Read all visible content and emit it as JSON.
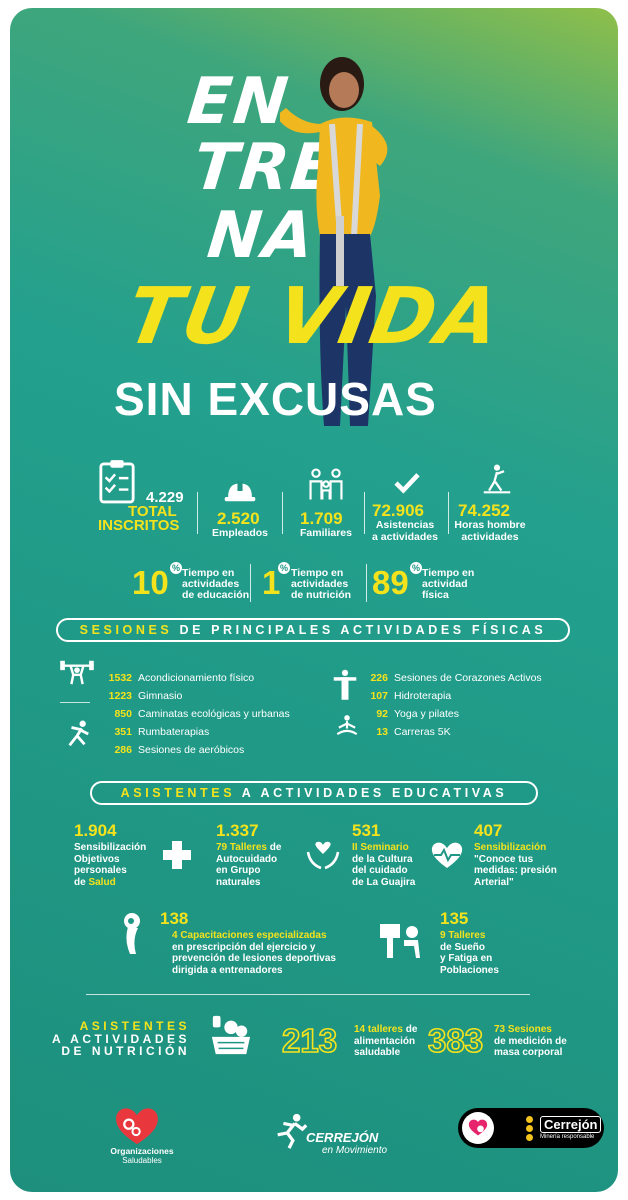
{
  "hero": {
    "line1": "EN",
    "line2": "TRE",
    "line3": "NA",
    "line4": "TU VIDA",
    "line5": "SIN EXCUSAS"
  },
  "stats": {
    "total": {
      "value": "4.229",
      "label1": "TOTAL",
      "label2": "INSCRITOS"
    },
    "empleados": {
      "value": "2.520",
      "label": "Empleados"
    },
    "familiares": {
      "value": "1.709",
      "label": "Familiares"
    },
    "asistencias": {
      "value": "72.906",
      "label1": "Asistencias",
      "label2": "a actividades"
    },
    "horas": {
      "value": "74.252",
      "label1": "Horas hombre",
      "label2": "actividades"
    }
  },
  "percentages": [
    {
      "value": "10",
      "sign": "%",
      "l1": "Tiempo en",
      "l2": "actividades",
      "l3": "de educación"
    },
    {
      "value": "1",
      "sign": "%",
      "l1": "Tiempo en",
      "l2": "actividades",
      "l3": "de nutrición"
    },
    {
      "value": "89",
      "sign": "%",
      "l1": "Tiempo en",
      "l2": "actividad",
      "l3": "física"
    }
  ],
  "sessions_header": {
    "highlight": "SESIONES",
    "rest": "DE PRINCIPALES ACTIVIDADES FÍSICAS"
  },
  "sessions_left": [
    {
      "num": "1532",
      "label": "Acondicionamiento físico"
    },
    {
      "num": "1223",
      "label": "Gimnasio"
    },
    {
      "num": "850",
      "label": "Caminatas ecológicas y urbanas"
    },
    {
      "num": "351",
      "label": "Rumbaterapias"
    },
    {
      "num": "286",
      "label": "Sesiones de aeróbicos"
    }
  ],
  "sessions_right": [
    {
      "num": "226",
      "label": "Sesiones de Corazones Activos"
    },
    {
      "num": "107",
      "label": "Hidroterapia"
    },
    {
      "num": "92",
      "label": "Yoga y pilates"
    },
    {
      "num": "13",
      "label": "Carreras 5K"
    }
  ],
  "edu_header": {
    "highlight": "ASISTENTES",
    "rest": "A ACTIVIDADES EDUCATIVAS"
  },
  "edu": {
    "a": {
      "value": "1.904",
      "l1": "Sensibilización",
      "l2": "Objetivos",
      "l3": "personales",
      "l4a": "de ",
      "l4b": "Salud"
    },
    "b": {
      "value": "1.337",
      "l1a": "79 Talleres",
      "l1b": " de",
      "l2": "Autocuidado",
      "l3": "en Grupo",
      "l4": "naturales"
    },
    "c": {
      "value": "531",
      "l1": "II Seminario",
      "l2": "de la Cultura",
      "l3": "del cuidado",
      "l4": "de La Guajira"
    },
    "d": {
      "value": "407",
      "l1": "Sensibilización",
      "l2": "\"Conoce tus",
      "l3": "medidas: presión",
      "l4": "Arterial\""
    },
    "e": {
      "value": "138",
      "l1": "4 Capacitaciones especializadas",
      "l2": "en prescripción del ejercicio y",
      "l3": "prevención de lesiones deportivas",
      "l4": "dirigida a entrenadores"
    },
    "f": {
      "value": "135",
      "l1": "9 Talleres",
      "l2": "de Sueño",
      "l3": "y Fatiga en",
      "l4": "Poblaciones"
    }
  },
  "nutrition": {
    "title1": "ASISTENTES",
    "title2": "A ACTIVIDADES",
    "title3": "DE NUTRICIÓN",
    "n1": {
      "value": "213",
      "l1a": "14 talleres",
      "l1b": " de",
      "l2": "alimentación",
      "l3": "saludable"
    },
    "n2": {
      "value": "383",
      "l1": "73 Sesiones",
      "l2": "de medición de",
      "l3": "masa corporal"
    }
  },
  "footer": {
    "org1": "Organizaciones",
    "org2": "Saludables",
    "brand1": "CERREJÓN",
    "brand2": "en Movimiento",
    "cerrejon": "Cerrejón",
    "cerrejon_tag": "Minería responsable"
  },
  "colors": {
    "accent": "#f4e31c",
    "teal": "#1f9784",
    "logo_red": "#e8383d",
    "logo_pink": "#e6256d"
  }
}
